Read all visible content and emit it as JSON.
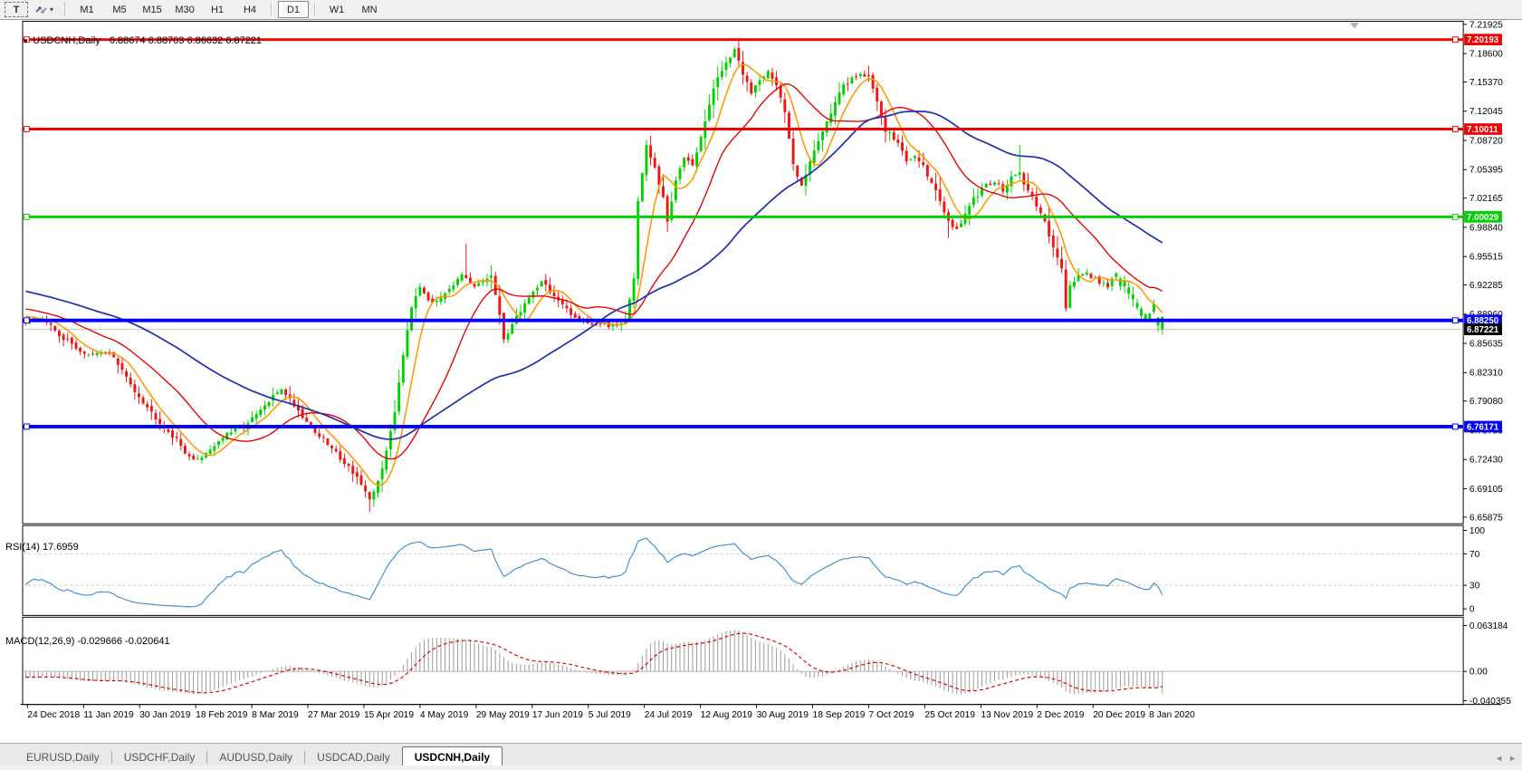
{
  "toolbar": {
    "text_tool_label": "T",
    "dropdown_caret": "▾",
    "timeframes": [
      "M1",
      "M5",
      "M15",
      "M30",
      "H1",
      "H4",
      "D1",
      "W1",
      "MN"
    ],
    "active_timeframe": "D1"
  },
  "chart": {
    "title_symbol": "USDCNH,Daily",
    "title_ohlc": "6.88674 6.88703 6.86632 6.87221",
    "price_axis_ticks": [
      "7.21925",
      "7.18600",
      "7.15370",
      "7.12045",
      "7.08720",
      "7.05395",
      "7.02165",
      "6.98840",
      "6.95515",
      "6.92285",
      "6.88960",
      "6.85635",
      "6.82310",
      "6.79080",
      "6.75755",
      "6.72430",
      "6.69105",
      "6.65875"
    ],
    "date_labels": [
      "24 Dec 2018",
      "11 Jan 2019",
      "30 Jan 2019",
      "18 Feb 2019",
      "8 Mar 2019",
      "27 Mar 2019",
      "15 Apr 2019",
      "4 May 2019",
      "29 May 2019",
      "17 Jun 2019",
      "5 Jul 2019",
      "24 Jul 2019",
      "12 Aug 2019",
      "30 Aug 2019",
      "18 Sep 2019",
      "7 Oct 2019",
      "25 Oct 2019",
      "13 Nov 2019",
      "2 Dec 2019",
      "20 Dec 2019",
      "8 Jan 2020"
    ],
    "colors": {
      "candle_up": "#00d200",
      "candle_down": "#f01414",
      "ma_fast": "#ff9900",
      "ma_medium": "#e60000",
      "ma_slow": "#2333b0",
      "hline_red": "#f00000",
      "hline_green": "#00d200",
      "hline_blue": "#0000fa",
      "current_price_line": "#c0c0c0",
      "rsi_line": "#418fd0",
      "macd_hist": "#999999",
      "macd_signal": "#e00000"
    }
  },
  "chart_data": {
    "type": "candlestick",
    "symbol": "USDCNH",
    "period": "Daily",
    "last_ohlc": {
      "open": 6.88674,
      "high": 6.88703,
      "low": 6.86632,
      "close": 6.87221
    },
    "bars_total": 272,
    "price_axis": {
      "top_tick": 7.21925,
      "bottom_tick": 6.65875
    },
    "price_anchors": [
      [
        0,
        6.882
      ],
      [
        4,
        6.885
      ],
      [
        9,
        6.862
      ],
      [
        15,
        6.842
      ],
      [
        20,
        6.847
      ],
      [
        25,
        6.81
      ],
      [
        30,
        6.778
      ],
      [
        36,
        6.746
      ],
      [
        40,
        6.722
      ],
      [
        43,
        6.732
      ],
      [
        47,
        6.75
      ],
      [
        53,
        6.765
      ],
      [
        58,
        6.79
      ],
      [
        61,
        6.806
      ],
      [
        65,
        6.78
      ],
      [
        69,
        6.756
      ],
      [
        74,
        6.732
      ],
      [
        79,
        6.705
      ],
      [
        82,
        6.676
      ],
      [
        84,
        6.7
      ],
      [
        86,
        6.732
      ],
      [
        88,
        6.78
      ],
      [
        90,
        6.845
      ],
      [
        92,
        6.9
      ],
      [
        94,
        6.923
      ],
      [
        97,
        6.9
      ],
      [
        100,
        6.916
      ],
      [
        104,
        6.932
      ],
      [
        107,
        6.92
      ],
      [
        111,
        6.934
      ],
      [
        114,
        6.862
      ],
      [
        116,
        6.878
      ],
      [
        119,
        6.902
      ],
      [
        123,
        6.928
      ],
      [
        126,
        6.91
      ],
      [
        130,
        6.888
      ],
      [
        135,
        6.879
      ],
      [
        139,
        6.876
      ],
      [
        143,
        6.883
      ],
      [
        145,
        6.93
      ],
      [
        146,
        7.02
      ],
      [
        148,
        7.08
      ],
      [
        150,
        7.055
      ],
      [
        152,
        7.02
      ],
      [
        153,
        6.995
      ],
      [
        155,
        7.04
      ],
      [
        157,
        7.07
      ],
      [
        159,
        7.062
      ],
      [
        161,
        7.09
      ],
      [
        163,
        7.128
      ],
      [
        165,
        7.16
      ],
      [
        167,
        7.176
      ],
      [
        169,
        7.188
      ],
      [
        171,
        7.164
      ],
      [
        173,
        7.142
      ],
      [
        175,
        7.156
      ],
      [
        177,
        7.168
      ],
      [
        179,
        7.15
      ],
      [
        181,
        7.118
      ],
      [
        183,
        7.06
      ],
      [
        185,
        7.038
      ],
      [
        187,
        7.062
      ],
      [
        189,
        7.088
      ],
      [
        191,
        7.11
      ],
      [
        193,
        7.13
      ],
      [
        195,
        7.148
      ],
      [
        197,
        7.158
      ],
      [
        199,
        7.164
      ],
      [
        201,
        7.158
      ],
      [
        203,
        7.132
      ],
      [
        205,
        7.1
      ],
      [
        208,
        7.084
      ],
      [
        210,
        7.062
      ],
      [
        212,
        7.072
      ],
      [
        214,
        7.058
      ],
      [
        216,
        7.04
      ],
      [
        218,
        7.02
      ],
      [
        220,
        6.993
      ],
      [
        222,
        6.986
      ],
      [
        224,
        7.002
      ],
      [
        226,
        7.02
      ],
      [
        229,
        7.036
      ],
      [
        231,
        7.042
      ],
      [
        233,
        7.03
      ],
      [
        235,
        7.046
      ],
      [
        237,
        7.048
      ],
      [
        239,
        7.03
      ],
      [
        241,
        7.012
      ],
      [
        243,
        6.994
      ],
      [
        245,
        6.968
      ],
      [
        247,
        6.942
      ],
      [
        248,
        6.898
      ],
      [
        249,
        6.921
      ],
      [
        252,
        6.938
      ],
      [
        255,
        6.93
      ],
      [
        258,
        6.922
      ],
      [
        260,
        6.936
      ],
      [
        262,
        6.926
      ],
      [
        264,
        6.91
      ],
      [
        266,
        6.896
      ],
      [
        268,
        6.888
      ],
      [
        269,
        6.902
      ],
      [
        270,
        6.888
      ],
      [
        271,
        6.87221
      ]
    ],
    "wick_spikes": [
      {
        "bar": 105,
        "high_add": 0.033
      },
      {
        "bar": 237,
        "high_add": 0.03
      },
      {
        "bar": 220,
        "low_add": 0.018
      },
      {
        "bar": 82,
        "low_add": 0.012
      },
      {
        "bar": 153,
        "low_add": 0.01
      }
    ],
    "green_descent_range": [
      261,
      270
    ],
    "moving_averages": [
      {
        "name": "fast",
        "period": 7,
        "color_key": "ma_fast"
      },
      {
        "name": "medium",
        "period": 21,
        "color_key": "ma_medium"
      },
      {
        "name": "slow",
        "period": 55,
        "color_key": "ma_slow"
      }
    ],
    "hlines": [
      {
        "label": "7.20193",
        "price": 7.20193,
        "color_key": "hline_red",
        "width": 3
      },
      {
        "label": "7.10011",
        "price": 7.10011,
        "color_key": "hline_red",
        "width": 3
      },
      {
        "label": "7.00029",
        "price": 7.00029,
        "color_key": "hline_green",
        "width": 3
      },
      {
        "label": "6.88250",
        "price": 6.8825,
        "color_key": "hline_blue",
        "width": 4
      },
      {
        "label": "6.76171",
        "price": 6.76171,
        "color_key": "hline_blue",
        "width": 4
      }
    ],
    "current_price": {
      "label": "6.87221",
      "price": 6.87221
    }
  },
  "rsi_panel": {
    "label": "RSI(14) 17.6959",
    "current_value": 17.6959,
    "period": 14,
    "axis_ticks": [
      "100",
      "70",
      "30",
      "0"
    ],
    "level_lines": [
      70,
      30
    ]
  },
  "macd_panel": {
    "label": "MACD(12,26,9) -0.029666 -0.020641",
    "main_value": -0.029666,
    "signal_value": -0.020641,
    "axis_ticks": [
      "0.063184",
      "0.00",
      "-0.040355"
    ],
    "axis_values": [
      0.063184,
      0.0,
      -0.040355
    ]
  },
  "tabs": {
    "items": [
      "EURUSD,Daily",
      "USDCHF,Daily",
      "AUDUSD,Daily",
      "USDCAD,Daily",
      "USDCNH,Daily"
    ],
    "active": "USDCNH,Daily",
    "scroll_left": "◄",
    "scroll_right": "►"
  }
}
